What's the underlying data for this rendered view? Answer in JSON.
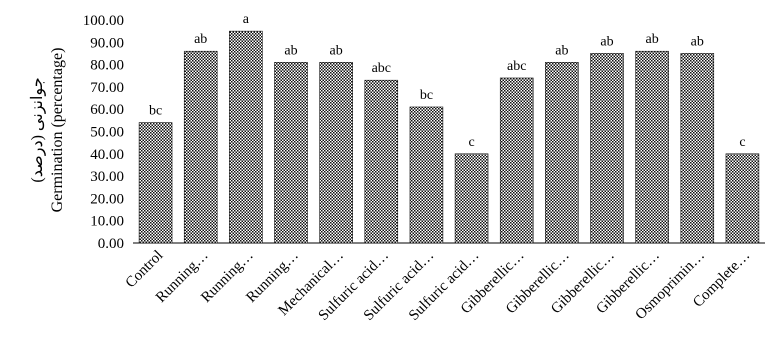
{
  "chart_data": {
    "type": "bar",
    "title": "",
    "xlabel": "",
    "ylabel_line1": "جوانزنی (درصد)",
    "ylabel_line2": "Germination (percentage)",
    "ylim": [
      0,
      100
    ],
    "y_step": 10,
    "y_tick_labels": [
      "0.00",
      "10.00",
      "20.00",
      "30.00",
      "40.00",
      "50.00",
      "60.00",
      "70.00",
      "80.00",
      "90.00",
      "100.00"
    ],
    "grid": false,
    "legend": "none",
    "bar_pattern": "checkered-black",
    "categories": [
      "Control",
      "Running…",
      "Running…",
      "Running…",
      "Mechanical…",
      "Sulfuric acid…",
      "Sulfuric acid…",
      "Sulfuric acid…",
      "Gibberellic…",
      "Gibberellic…",
      "Gibberellic…",
      "Gibberellic…",
      "Osmoprimin…",
      "Complete…"
    ],
    "values": [
      54,
      86,
      95,
      81,
      81,
      73,
      61,
      40,
      74,
      81,
      85,
      86,
      85,
      40
    ],
    "data_labels": [
      "bc",
      "ab",
      "a",
      "ab",
      "ab",
      "abc",
      "bc",
      "c",
      "abc",
      "ab",
      "ab",
      "ab",
      "ab",
      "c"
    ]
  }
}
